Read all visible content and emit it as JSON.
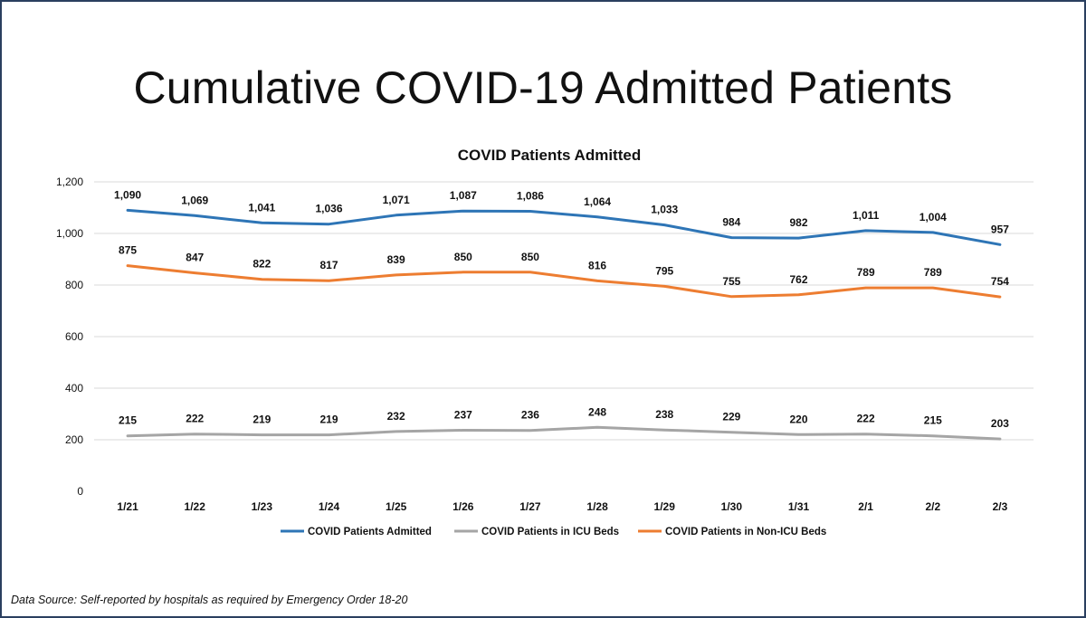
{
  "slide": {
    "title": "Cumulative COVID-19 Admitted Patients",
    "footer": "Data Source: Self-reported by hospitals as required by Emergency Order 18-20"
  },
  "chart_data": {
    "type": "line",
    "title": "COVID Patients Admitted",
    "xlabel": "",
    "ylabel": "",
    "categories": [
      "1/21",
      "1/22",
      "1/23",
      "1/24",
      "1/25",
      "1/26",
      "1/27",
      "1/28",
      "1/29",
      "1/30",
      "1/31",
      "2/1",
      "2/2",
      "2/3"
    ],
    "ylim": [
      0,
      1200
    ],
    "y_ticks": [
      0,
      200,
      400,
      600,
      800,
      1000,
      1200
    ],
    "y_tick_labels": [
      "0",
      "200",
      "400",
      "600",
      "800",
      "1,000",
      "1,200"
    ],
    "grid": true,
    "legend_position": "bottom",
    "series": [
      {
        "name": "COVID Patients Admitted",
        "color": "#2e75b6",
        "values": [
          1090,
          1069,
          1041,
          1036,
          1071,
          1087,
          1086,
          1064,
          1033,
          984,
          982,
          1011,
          1004,
          957
        ],
        "labels": [
          "1,090",
          "1,069",
          "1,041",
          "1,036",
          "1,071",
          "1,087",
          "1,086",
          "1,064",
          "1,033",
          "984",
          "982",
          "1,011",
          "1,004",
          "957"
        ]
      },
      {
        "name": "COVID Patients in ICU Beds",
        "color": "#a5a5a5",
        "values": [
          215,
          222,
          219,
          219,
          232,
          237,
          236,
          248,
          238,
          229,
          220,
          222,
          215,
          203
        ],
        "labels": [
          "215",
          "222",
          "219",
          "219",
          "232",
          "237",
          "236",
          "248",
          "238",
          "229",
          "220",
          "222",
          "215",
          "203"
        ]
      },
      {
        "name": "COVID Patients in Non-ICU Beds",
        "color": "#ed7d31",
        "values": [
          875,
          847,
          822,
          817,
          839,
          850,
          850,
          816,
          795,
          755,
          762,
          789,
          789,
          754
        ],
        "labels": [
          "875",
          "847",
          "822",
          "817",
          "839",
          "850",
          "850",
          "816",
          "795",
          "755",
          "762",
          "789",
          "789",
          "754"
        ]
      }
    ]
  }
}
